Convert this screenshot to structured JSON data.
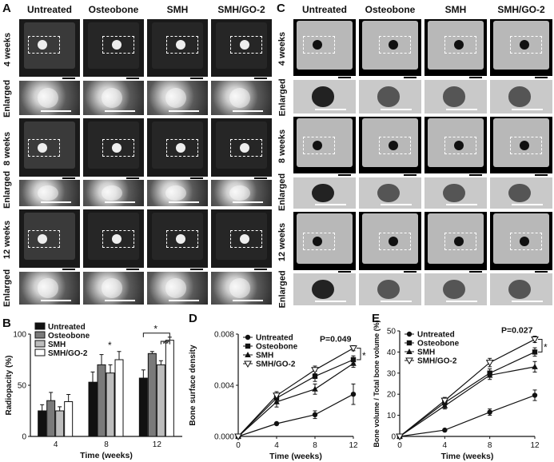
{
  "panel_a": {
    "label": "A",
    "columns": [
      "Untreated",
      "Osteobone",
      "SMH",
      "SMH/GO-2"
    ],
    "rows": [
      "4 weeks",
      "Enlarged",
      "8 weeks",
      "Enlarged",
      "12 weeks",
      "Enlarged"
    ]
  },
  "panel_c": {
    "label": "C",
    "columns": [
      "Untreated",
      "Osteobone",
      "SMH",
      "SMH/GO-2"
    ],
    "rows": [
      "4 weeks",
      "Enlarged",
      "8 weeks",
      "Enlarged",
      "12 weeks",
      "Enlarged"
    ]
  },
  "colors": {
    "black": "#111111",
    "grey_dark": "#7a7a7a",
    "grey_light": "#bdbdbd",
    "white": "#ffffff"
  },
  "chart_data": [
    {
      "label": "B",
      "type": "bar",
      "ylabel": "Radiopacity (%)",
      "xlabel": "Time (weeks)",
      "categories": [
        "4",
        "8",
        "12"
      ],
      "ylim": [
        0,
        100
      ],
      "yticks": [
        "0",
        "50",
        "100"
      ],
      "series": [
        {
          "name": "Untreated",
          "values": [
            25,
            53,
            57
          ],
          "errors": [
            6,
            10,
            8
          ]
        },
        {
          "name": "Osteobone",
          "values": [
            35,
            70,
            81
          ],
          "errors": [
            8,
            10,
            2
          ]
        },
        {
          "name": "SMH",
          "values": [
            25,
            62,
            70
          ],
          "errors": [
            4,
            8,
            4
          ]
        },
        {
          "name": "SMH/GO-2",
          "values": [
            34,
            75,
            94
          ],
          "errors": [
            7,
            8,
            3
          ]
        }
      ],
      "annotations": [
        "*",
        "*",
        "**"
      ],
      "legend": "top-left"
    },
    {
      "label": "D",
      "type": "line",
      "ylabel": "Bone surface density",
      "xlabel": "Time (weeks)",
      "x": [
        0,
        4,
        8,
        12
      ],
      "xticks": [
        "0",
        "4",
        "8",
        "12"
      ],
      "ylim": [
        0,
        0.008
      ],
      "yticks": [
        "0.000",
        "0.004",
        "0.008"
      ],
      "series": [
        {
          "name": "Untreated",
          "values": [
            0,
            0.001,
            0.0017,
            0.0033
          ],
          "errors": [
            0,
            0.0001,
            0.0003,
            0.0008
          ]
        },
        {
          "name": "Osteobone",
          "values": [
            0,
            0.003,
            0.0047,
            0.006
          ],
          "errors": [
            0,
            0.0003,
            0.0004,
            0.0003
          ]
        },
        {
          "name": "SMH",
          "values": [
            0,
            0.0027,
            0.0037,
            0.0057
          ],
          "errors": [
            0,
            0.0004,
            0.0004,
            0.0003
          ]
        },
        {
          "name": "SMH/GO-2",
          "values": [
            0,
            0.0032,
            0.0052,
            0.0069
          ],
          "errors": [
            0,
            0.0003,
            0.0003,
            0.0002
          ]
        }
      ],
      "annotations": [
        "P=0.049",
        "*"
      ],
      "legend": "top-left"
    },
    {
      "label": "E",
      "type": "line",
      "ylabel": "Bone volume / Total bone volume (%)",
      "xlabel": "Time (weeks)",
      "x": [
        0,
        4,
        8,
        12
      ],
      "xticks": [
        "0",
        "4",
        "8",
        "12"
      ],
      "ylim": [
        0,
        50
      ],
      "yticks": [
        "0",
        "10",
        "20",
        "30",
        "40",
        "50"
      ],
      "series": [
        {
          "name": "Untreated",
          "values": [
            0,
            3,
            11.5,
            19.5
          ],
          "errors": [
            0,
            0.4,
            1.5,
            2.5
          ]
        },
        {
          "name": "Osteobone",
          "values": [
            0,
            16,
            30,
            40
          ],
          "errors": [
            0,
            1.5,
            2,
            2
          ]
        },
        {
          "name": "SMH",
          "values": [
            0,
            14.5,
            29,
            33
          ],
          "errors": [
            0,
            1.5,
            2,
            2.5
          ]
        },
        {
          "name": "SMH/GO-2",
          "values": [
            0,
            17,
            35,
            46
          ],
          "errors": [
            0,
            1.5,
            2,
            1.5
          ]
        }
      ],
      "annotations": [
        "P=0.027",
        "*"
      ],
      "legend": "top-left"
    }
  ]
}
